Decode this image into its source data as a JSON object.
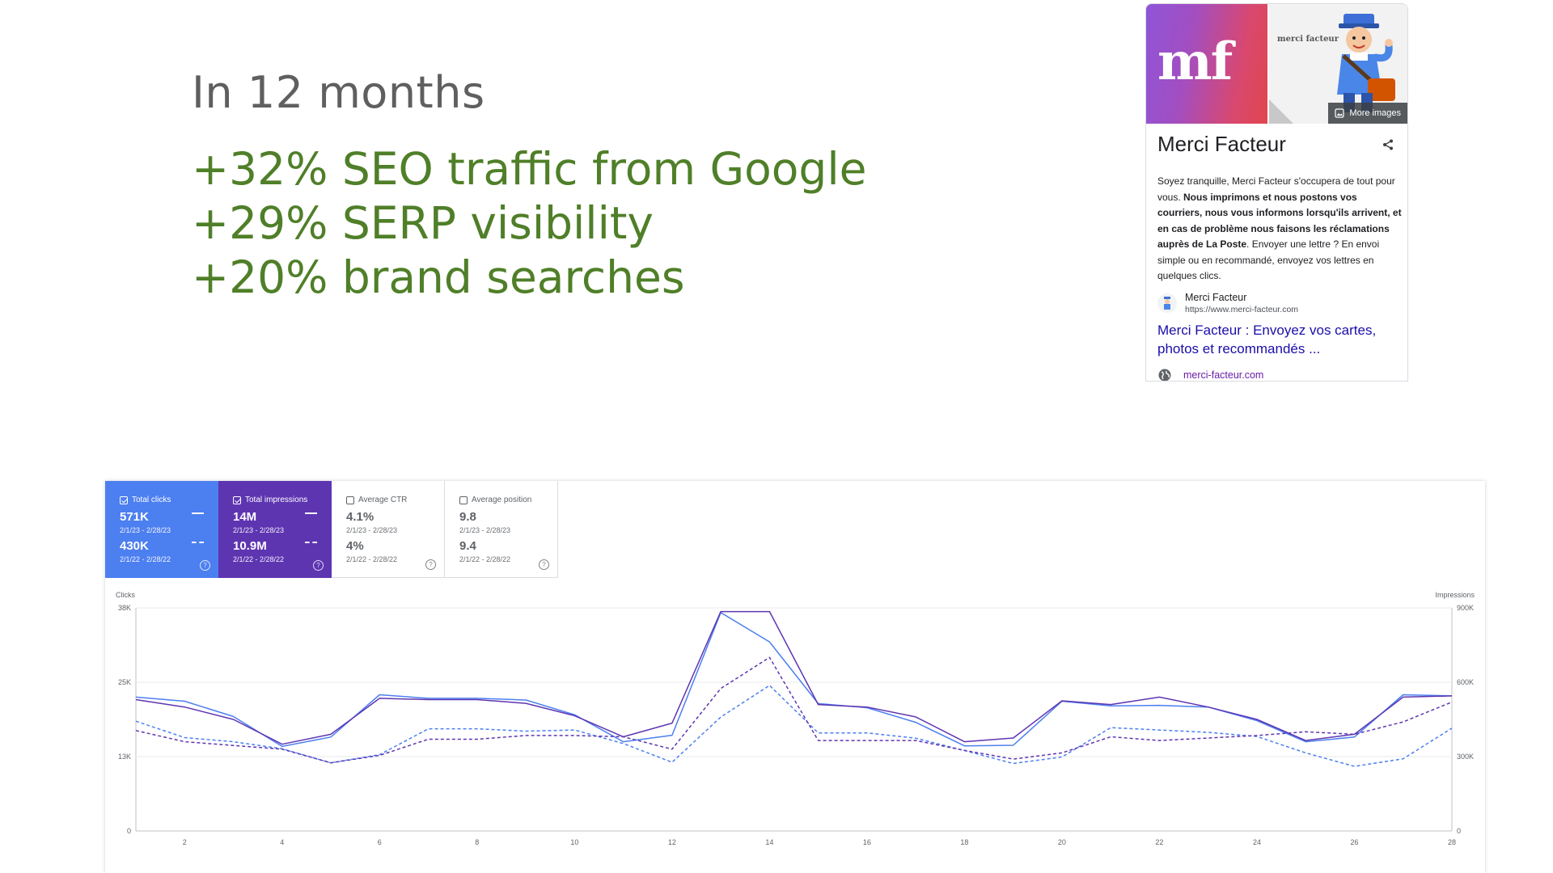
{
  "headline": {
    "intro": "In 12 months",
    "stats": [
      "+32% SEO traffic from Google",
      "+29% SERP  visibility",
      "+20% brand searches"
    ]
  },
  "knowledge_panel": {
    "logo_text": "mf",
    "illustration_brand": "merci facteur",
    "more_images": "More images",
    "title": "Merci Facteur",
    "desc_intro": "Soyez tranquille, Merci Facteur s'occupera de tout pour vous. ",
    "desc_bold": "Nous imprimons et nous postons vos courriers, nous vous informons lorsqu'ils arrivent, et en cas de problème nous faisons les réclamations auprès de La Poste",
    "desc_outro": ". Envoyer une lettre ? En envoi simple ou en recommandé, envoyez vos lettres en quelques clics.",
    "source_name": "Merci Facteur",
    "source_url": "https://www.merci-facteur.com",
    "link_text": "Merci Facteur : Envoyez vos cartes, photos et recommandés ...",
    "site_domain": "merci-facteur.com",
    "colors": {
      "link": "#1a0dab",
      "visited": "#681da8",
      "logo_from": "#8f55d8",
      "logo_to": "#e0464d"
    }
  },
  "search_console": {
    "cards": [
      {
        "label": "Total clicks",
        "checked": true,
        "value1": "571K",
        "range1": "2/1/23 - 2/28/23",
        "value2": "430K",
        "range2": "2/1/22 - 2/28/22",
        "color": "#4c7ff0"
      },
      {
        "label": "Total impressions",
        "checked": true,
        "value1": "14M",
        "range1": "2/1/23 - 2/28/23",
        "value2": "10.9M",
        "range2": "2/1/22 - 2/28/22",
        "color": "#5e35b1"
      },
      {
        "label": "Average CTR",
        "checked": false,
        "value1": "4.1%",
        "range1": "2/1/23 - 2/28/23",
        "value2": "4%",
        "range2": "2/1/22 - 2/28/22"
      },
      {
        "label": "Average position",
        "checked": false,
        "value1": "9.8",
        "range1": "2/1/23 - 2/28/23",
        "value2": "9.4",
        "range2": "2/1/22 - 2/28/22"
      }
    ],
    "help_glyph": "?"
  },
  "chart_data": {
    "type": "line",
    "x": [
      1,
      2,
      3,
      4,
      5,
      6,
      7,
      8,
      9,
      10,
      11,
      12,
      13,
      14,
      15,
      16,
      17,
      18,
      19,
      20,
      21,
      22,
      23,
      24,
      25,
      26,
      27,
      28
    ],
    "xticks": [
      "2",
      "4",
      "6",
      "8",
      "10",
      "12",
      "14",
      "16",
      "18",
      "20",
      "22",
      "24",
      "26",
      "28"
    ],
    "xtick_values": [
      2,
      4,
      6,
      8,
      10,
      12,
      14,
      16,
      18,
      20,
      22,
      24,
      26,
      28
    ],
    "ylabel_left": "Clicks",
    "ylabel_right": "Impressions",
    "yticks_left": [
      "0",
      "13K",
      "25K",
      "38K"
    ],
    "yticks_left_values": [
      0,
      12667,
      25333,
      38000
    ],
    "yticks_right": [
      "0",
      "300K",
      "600K",
      "900K"
    ],
    "yticks_right_values": [
      0,
      300000,
      600000,
      900000
    ],
    "ylim_left": [
      0,
      38000
    ],
    "ylim_right": [
      0,
      900000
    ],
    "grid": true,
    "series": [
      {
        "axis": "left",
        "dashed": false,
        "color": "#4c7ff0",
        "values": [
          22800,
          22100,
          19500,
          14400,
          16000,
          23200,
          22600,
          22600,
          22300,
          19800,
          15200,
          16300,
          37200,
          32200,
          21700,
          21000,
          18500,
          14500,
          14600,
          22100,
          21300,
          21400,
          21100,
          18800,
          15200,
          16000,
          23200,
          23000
        ]
      },
      {
        "axis": "right",
        "dashed": false,
        "color": "#5e35b1",
        "values": [
          530000,
          500000,
          450000,
          350000,
          390000,
          535000,
          530000,
          530000,
          515000,
          465000,
          380000,
          435000,
          885000,
          885000,
          510000,
          500000,
          460000,
          360000,
          375000,
          525000,
          510000,
          540000,
          500000,
          450000,
          365000,
          390000,
          540000,
          545000
        ]
      },
      {
        "axis": "left",
        "dashed": true,
        "color": "#4c7ff0",
        "values": [
          18700,
          15900,
          15200,
          14000,
          11600,
          13000,
          17400,
          17400,
          17000,
          17200,
          14900,
          11700,
          19400,
          24800,
          16700,
          16700,
          15800,
          13700,
          11500,
          12600,
          17600,
          17200,
          16800,
          16100,
          13300,
          11000,
          12300,
          17500
        ]
      },
      {
        "axis": "right",
        "dashed": true,
        "color": "#5e35b1",
        "values": [
          405000,
          360000,
          345000,
          330000,
          275000,
          305000,
          370000,
          370000,
          385000,
          385000,
          380000,
          330000,
          575000,
          700000,
          365000,
          365000,
          365000,
          325000,
          290000,
          315000,
          380000,
          365000,
          375000,
          385000,
          400000,
          390000,
          440000,
          520000
        ]
      }
    ]
  }
}
